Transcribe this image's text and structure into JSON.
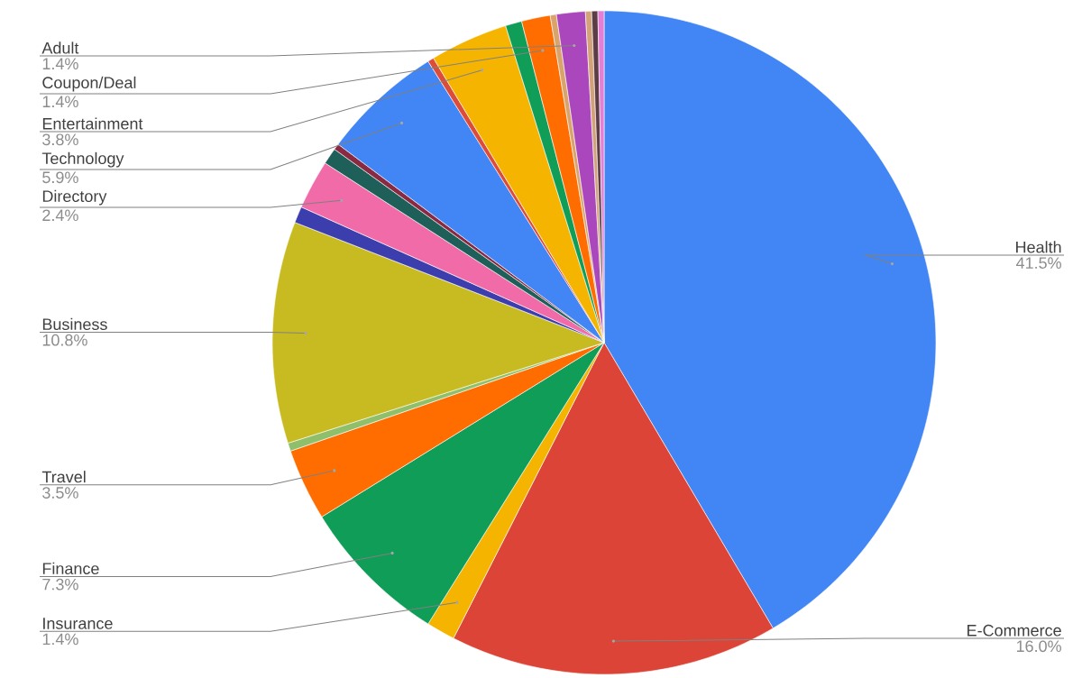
{
  "chart_data": {
    "type": "pie",
    "categories": [
      "Health",
      "E-Commerce",
      "Insurance",
      "Finance",
      "Travel",
      null,
      "Business",
      null,
      "Directory",
      null,
      null,
      "Technology",
      null,
      "Entertainment",
      null,
      "Coupon/Deal",
      null,
      "Adult",
      null,
      null,
      null
    ],
    "values": [
      41.5,
      16.0,
      1.4,
      7.3,
      3.5,
      0.4,
      10.8,
      0.8,
      2.4,
      0.8,
      0.3,
      5.9,
      0.3,
      3.8,
      0.8,
      1.4,
      0.3,
      1.4,
      0.3,
      0.3,
      0.3
    ],
    "value_labels": [
      "41.5%",
      "16.0%",
      "1.4%",
      "7.3%",
      "3.5%",
      null,
      "10.8%",
      null,
      "2.4%",
      null,
      null,
      "5.9%",
      null,
      "3.8%",
      null,
      "1.4%",
      null,
      "1.4%",
      null,
      null,
      null
    ],
    "colors": [
      "#4285f4",
      "#db4437",
      "#f4b400",
      "#0f9d58",
      "#ff6d01",
      "#8fbf6a",
      "#c8bb22",
      "#3b3eac",
      "#f06ba8",
      "#1e5f5a",
      "#8a2a42",
      "#4285f4",
      "#dd4b39",
      "#f4b400",
      "#0f9d58",
      "#ff6d01",
      "#d9a46c",
      "#ab47bc",
      "#d4a27a",
      "#5c3d46",
      "#e37fd6"
    ]
  }
}
